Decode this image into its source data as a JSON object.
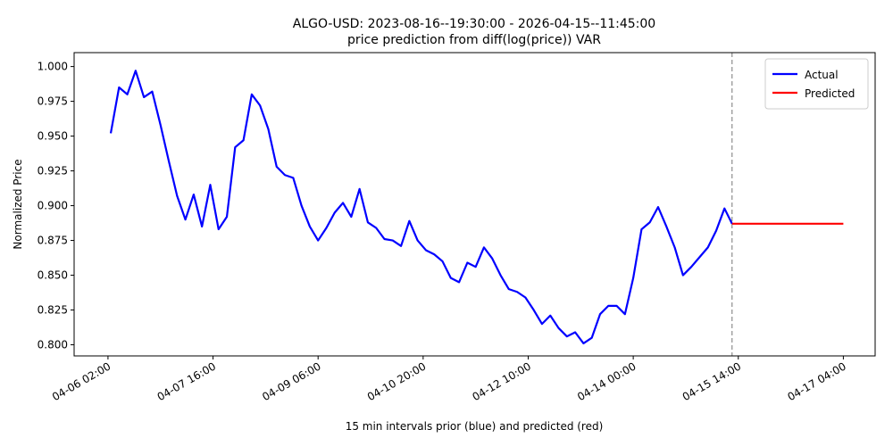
{
  "chart_data": {
    "type": "line",
    "title": "ALGO-USD: 2023-08-16--19:30:00 - 2026-04-15--11:45:00",
    "subtitle": "price prediction from diff(log(price)) VAR",
    "xlabel": "15 min intervals prior (blue) and predicted (red)",
    "ylabel": "Normalized Price",
    "xlim": [
      "04-05 13:45",
      "04-17 15:30"
    ],
    "xticks": [
      "04-06 02:00",
      "04-07 16:00",
      "04-09 06:00",
      "04-10 20:00",
      "04-12 10:00",
      "04-14 00:00",
      "04-15 14:00",
      "04-17 04:00"
    ],
    "ylim": [
      0.792,
      1.01
    ],
    "yticks": [
      {
        "value": 0.8,
        "label": "0.800"
      },
      {
        "value": 0.825,
        "label": "0.825"
      },
      {
        "value": 0.85,
        "label": "0.850"
      },
      {
        "value": 0.875,
        "label": "0.875"
      },
      {
        "value": 0.9,
        "label": "0.900"
      },
      {
        "value": 0.925,
        "label": "0.925"
      },
      {
        "value": 0.95,
        "label": "0.950"
      },
      {
        "value": 0.975,
        "label": "0.975"
      },
      {
        "value": 1.0,
        "label": "1.000"
      }
    ],
    "vline": "04-15 11:45",
    "legend": "upper right",
    "grid": false,
    "series": [
      {
        "name": "Actual",
        "color": "#0000ff",
        "x": [
          "04-06 03:00",
          "04-06 06:00",
          "04-06 09:00",
          "04-06 12:00",
          "04-06 15:00",
          "04-06 18:00",
          "04-06 21:00",
          "04-07 00:00",
          "04-07 03:00",
          "04-07 06:00",
          "04-07 09:00",
          "04-07 12:00",
          "04-07 15:00",
          "04-07 18:00",
          "04-07 21:00",
          "04-08 00:00",
          "04-08 03:00",
          "04-08 06:00",
          "04-08 09:00",
          "04-08 12:00",
          "04-08 15:00",
          "04-08 18:00",
          "04-08 21:00",
          "04-09 00:00",
          "04-09 03:00",
          "04-09 06:00",
          "04-09 09:00",
          "04-09 12:00",
          "04-09 15:00",
          "04-09 18:00",
          "04-09 21:00",
          "04-10 00:00",
          "04-10 03:00",
          "04-10 06:00",
          "04-10 09:00",
          "04-10 12:00",
          "04-10 15:00",
          "04-10 18:00",
          "04-10 21:00",
          "04-11 00:00",
          "04-11 03:00",
          "04-11 06:00",
          "04-11 09:00",
          "04-11 12:00",
          "04-11 15:00",
          "04-11 18:00",
          "04-11 21:00",
          "04-12 00:00",
          "04-12 03:00",
          "04-12 06:00",
          "04-12 09:00",
          "04-12 12:00",
          "04-12 15:00",
          "04-12 18:00",
          "04-12 21:00",
          "04-13 00:00",
          "04-13 03:00",
          "04-13 06:00",
          "04-13 09:00",
          "04-13 12:00",
          "04-13 15:00",
          "04-13 18:00",
          "04-13 21:00",
          "04-14 00:00",
          "04-14 03:00",
          "04-14 06:00",
          "04-14 09:00",
          "04-14 12:00",
          "04-14 15:00",
          "04-14 18:00",
          "04-14 21:00",
          "04-15 00:00",
          "04-15 03:00",
          "04-15 06:00",
          "04-15 09:00",
          "04-15 11:45"
        ],
        "values": [
          0.952,
          0.985,
          0.98,
          0.997,
          0.978,
          0.982,
          0.958,
          0.932,
          0.907,
          0.89,
          0.908,
          0.885,
          0.915,
          0.883,
          0.892,
          0.942,
          0.947,
          0.98,
          0.972,
          0.955,
          0.928,
          0.922,
          0.92,
          0.9,
          0.885,
          0.875,
          0.884,
          0.895,
          0.902,
          0.892,
          0.912,
          0.888,
          0.884,
          0.876,
          0.875,
          0.871,
          0.889,
          0.875,
          0.868,
          0.865,
          0.86,
          0.848,
          0.845,
          0.859,
          0.856,
          0.87,
          0.862,
          0.85,
          0.84,
          0.838,
          0.834,
          0.825,
          0.815,
          0.821,
          0.812,
          0.806,
          0.809,
          0.801,
          0.805,
          0.822,
          0.828,
          0.828,
          0.822,
          0.848,
          0.883,
          0.888,
          0.899,
          0.885,
          0.87,
          0.85,
          0.856,
          0.863,
          0.87,
          0.882,
          0.898,
          0.887
        ]
      },
      {
        "name": "Predicted",
        "color": "#ff0000",
        "x": [
          "04-15 11:45",
          "04-17 04:00"
        ],
        "values": [
          0.887,
          0.887
        ]
      }
    ]
  }
}
